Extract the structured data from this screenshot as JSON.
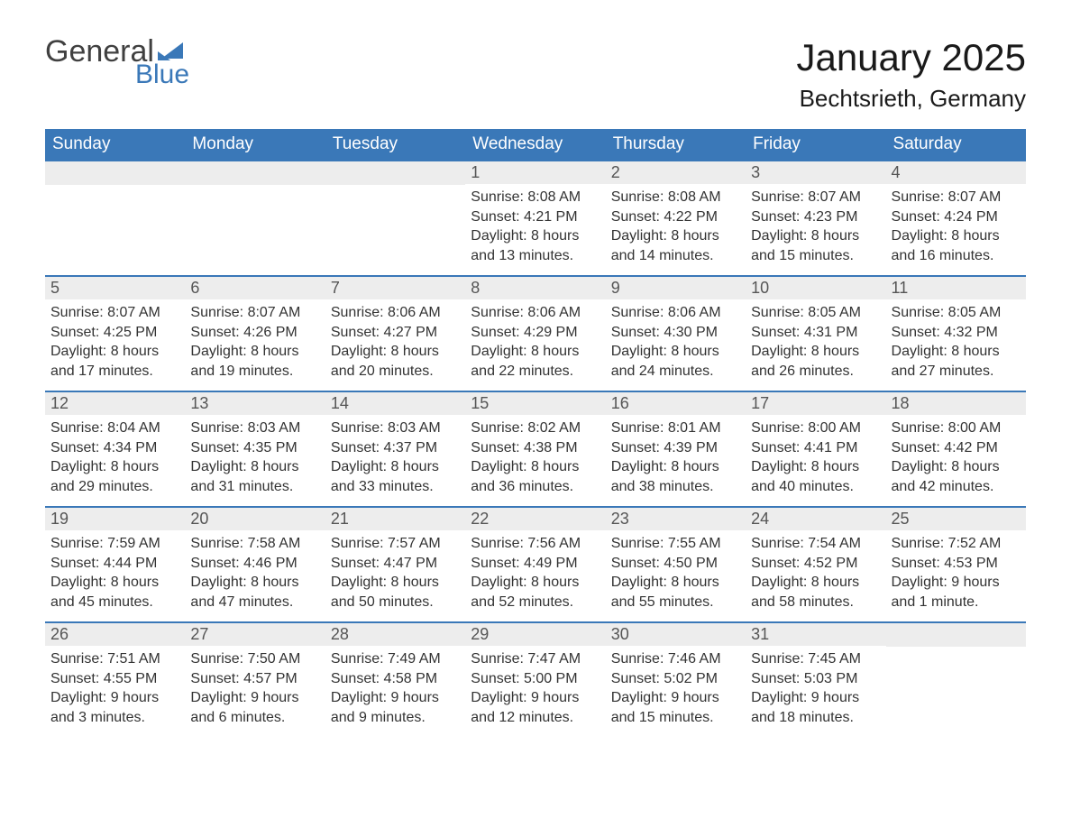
{
  "logo": {
    "text_general": "General",
    "text_blue": "Blue",
    "flag_color": "#3a78b8"
  },
  "title": "January 2025",
  "location": "Bechtsrieth, Germany",
  "colors": {
    "header_bg": "#3a78b8",
    "header_text": "#ffffff",
    "daynum_bg": "#ededed",
    "daynum_text": "#555555",
    "body_text": "#333333",
    "row_border": "#3a78b8",
    "page_bg": "#ffffff"
  },
  "fonts": {
    "title_size_pt": 32,
    "location_size_pt": 20,
    "header_size_pt": 15,
    "daynum_size_pt": 14,
    "body_size_pt": 12
  },
  "weekdays": [
    "Sunday",
    "Monday",
    "Tuesday",
    "Wednesday",
    "Thursday",
    "Friday",
    "Saturday"
  ],
  "weeks": [
    [
      null,
      null,
      null,
      {
        "n": "1",
        "sunrise": "8:08 AM",
        "sunset": "4:21 PM",
        "daylight": "8 hours and 13 minutes."
      },
      {
        "n": "2",
        "sunrise": "8:08 AM",
        "sunset": "4:22 PM",
        "daylight": "8 hours and 14 minutes."
      },
      {
        "n": "3",
        "sunrise": "8:07 AM",
        "sunset": "4:23 PM",
        "daylight": "8 hours and 15 minutes."
      },
      {
        "n": "4",
        "sunrise": "8:07 AM",
        "sunset": "4:24 PM",
        "daylight": "8 hours and 16 minutes."
      }
    ],
    [
      {
        "n": "5",
        "sunrise": "8:07 AM",
        "sunset": "4:25 PM",
        "daylight": "8 hours and 17 minutes."
      },
      {
        "n": "6",
        "sunrise": "8:07 AM",
        "sunset": "4:26 PM",
        "daylight": "8 hours and 19 minutes."
      },
      {
        "n": "7",
        "sunrise": "8:06 AM",
        "sunset": "4:27 PM",
        "daylight": "8 hours and 20 minutes."
      },
      {
        "n": "8",
        "sunrise": "8:06 AM",
        "sunset": "4:29 PM",
        "daylight": "8 hours and 22 minutes."
      },
      {
        "n": "9",
        "sunrise": "8:06 AM",
        "sunset": "4:30 PM",
        "daylight": "8 hours and 24 minutes."
      },
      {
        "n": "10",
        "sunrise": "8:05 AM",
        "sunset": "4:31 PM",
        "daylight": "8 hours and 26 minutes."
      },
      {
        "n": "11",
        "sunrise": "8:05 AM",
        "sunset": "4:32 PM",
        "daylight": "8 hours and 27 minutes."
      }
    ],
    [
      {
        "n": "12",
        "sunrise": "8:04 AM",
        "sunset": "4:34 PM",
        "daylight": "8 hours and 29 minutes."
      },
      {
        "n": "13",
        "sunrise": "8:03 AM",
        "sunset": "4:35 PM",
        "daylight": "8 hours and 31 minutes."
      },
      {
        "n": "14",
        "sunrise": "8:03 AM",
        "sunset": "4:37 PM",
        "daylight": "8 hours and 33 minutes."
      },
      {
        "n": "15",
        "sunrise": "8:02 AM",
        "sunset": "4:38 PM",
        "daylight": "8 hours and 36 minutes."
      },
      {
        "n": "16",
        "sunrise": "8:01 AM",
        "sunset": "4:39 PM",
        "daylight": "8 hours and 38 minutes."
      },
      {
        "n": "17",
        "sunrise": "8:00 AM",
        "sunset": "4:41 PM",
        "daylight": "8 hours and 40 minutes."
      },
      {
        "n": "18",
        "sunrise": "8:00 AM",
        "sunset": "4:42 PM",
        "daylight": "8 hours and 42 minutes."
      }
    ],
    [
      {
        "n": "19",
        "sunrise": "7:59 AM",
        "sunset": "4:44 PM",
        "daylight": "8 hours and 45 minutes."
      },
      {
        "n": "20",
        "sunrise": "7:58 AM",
        "sunset": "4:46 PM",
        "daylight": "8 hours and 47 minutes."
      },
      {
        "n": "21",
        "sunrise": "7:57 AM",
        "sunset": "4:47 PM",
        "daylight": "8 hours and 50 minutes."
      },
      {
        "n": "22",
        "sunrise": "7:56 AM",
        "sunset": "4:49 PM",
        "daylight": "8 hours and 52 minutes."
      },
      {
        "n": "23",
        "sunrise": "7:55 AM",
        "sunset": "4:50 PM",
        "daylight": "8 hours and 55 minutes."
      },
      {
        "n": "24",
        "sunrise": "7:54 AM",
        "sunset": "4:52 PM",
        "daylight": "8 hours and 58 minutes."
      },
      {
        "n": "25",
        "sunrise": "7:52 AM",
        "sunset": "4:53 PM",
        "daylight": "9 hours and 1 minute."
      }
    ],
    [
      {
        "n": "26",
        "sunrise": "7:51 AM",
        "sunset": "4:55 PM",
        "daylight": "9 hours and 3 minutes."
      },
      {
        "n": "27",
        "sunrise": "7:50 AM",
        "sunset": "4:57 PM",
        "daylight": "9 hours and 6 minutes."
      },
      {
        "n": "28",
        "sunrise": "7:49 AM",
        "sunset": "4:58 PM",
        "daylight": "9 hours and 9 minutes."
      },
      {
        "n": "29",
        "sunrise": "7:47 AM",
        "sunset": "5:00 PM",
        "daylight": "9 hours and 12 minutes."
      },
      {
        "n": "30",
        "sunrise": "7:46 AM",
        "sunset": "5:02 PM",
        "daylight": "9 hours and 15 minutes."
      },
      {
        "n": "31",
        "sunrise": "7:45 AM",
        "sunset": "5:03 PM",
        "daylight": "9 hours and 18 minutes."
      },
      null
    ]
  ],
  "labels": {
    "sunrise": "Sunrise:",
    "sunset": "Sunset:",
    "daylight": "Daylight:"
  }
}
